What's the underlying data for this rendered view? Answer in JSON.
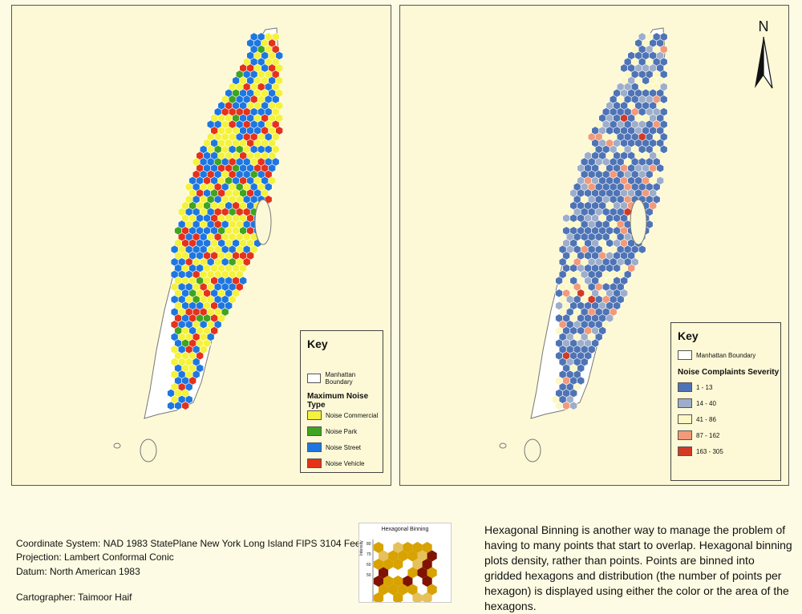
{
  "left_map": {
    "legend": {
      "title": "Key",
      "boundary_label": "Manhattan Boundary",
      "subtitle": "Maximum Noise Type",
      "items": [
        {
          "label": "Noise Commercial",
          "color": "#f4f23a"
        },
        {
          "label": "Noise Park",
          "color": "#3fa421"
        },
        {
          "label": "Noise Street",
          "color": "#1e77e0"
        },
        {
          "label": "Noise Vehicle",
          "color": "#e5321b"
        }
      ]
    }
  },
  "right_map": {
    "north_arrow": "N",
    "legend": {
      "title": "Key",
      "boundary_label": "Manhattan Boundary",
      "subtitle": "Noise Complaints Severity",
      "items": [
        {
          "label": "1 - 13",
          "color": "#4f74b5"
        },
        {
          "label": "14 - 40",
          "color": "#9daecb"
        },
        {
          "label": "41 - 86",
          "color": "#fcf8c5"
        },
        {
          "label": "87 - 162",
          "color": "#f29a79"
        },
        {
          "label": "163 - 305",
          "color": "#d23a26"
        }
      ]
    }
  },
  "info": {
    "coordinate_system": "Coordinate System: NAD 1983 StatePlane New York Long Island FIPS 3104 Feet",
    "projection": "Projection: Lambert Conformal Conic",
    "datum": "Datum: North American 1983",
    "cartographer": "Cartographer: Taimoor Haif"
  },
  "inset": {
    "title": "Hexagonal Binning",
    "ylabel": "Intensity",
    "ticks": [
      "80",
      "70",
      "60",
      "50"
    ],
    "colors": [
      "#d8a200",
      "#7f1200",
      "#e6c15a"
    ]
  },
  "description": "Hexagonal Binning is another way to manage the problem of having to many points that start to overlap. Hexagonal binning plots density, rather than points. Points are binned into gridded hexagons and distribution (the number of points per hexagon) is displayed using either the color or the area of the hexagons."
}
